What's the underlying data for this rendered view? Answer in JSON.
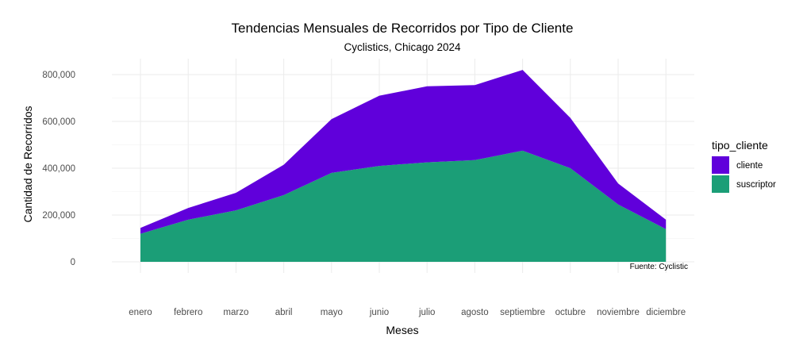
{
  "chart_data": {
    "type": "area",
    "stacked": true,
    "title": "Tendencias Mensuales de Recorridos por Tipo de Cliente",
    "subtitle": "Cyclistics, Chicago 2024",
    "xlabel": "Meses",
    "ylabel": "Cantidad de Recorridos",
    "caption": "Fuente: Cyclistic",
    "categories": [
      "enero",
      "febrero",
      "marzo",
      "abril",
      "mayo",
      "junio",
      "julio",
      "agosto",
      "septiembre",
      "octubre",
      "noviembre",
      "diciembre"
    ],
    "series": [
      {
        "name": "suscriptor",
        "color": "#1B9E77",
        "values": [
          120000,
          180000,
          220000,
          285000,
          380000,
          410000,
          425000,
          435000,
          475000,
          400000,
          245000,
          140000
        ]
      },
      {
        "name": "cliente",
        "color": "#6000DB",
        "values": [
          25000,
          50000,
          75000,
          130000,
          230000,
          300000,
          325000,
          320000,
          345000,
          215000,
          90000,
          40000
        ]
      }
    ],
    "ylim": [
      0,
      800000
    ],
    "yticks": [
      0,
      200000,
      400000,
      600000,
      800000
    ],
    "ytick_labels": [
      "0",
      "200,000",
      "400,000",
      "600,000",
      "800,000"
    ],
    "legend": {
      "title": "tipo_cliente",
      "position": "right",
      "entries": [
        "cliente",
        "suscriptor"
      ]
    },
    "grid": true
  }
}
